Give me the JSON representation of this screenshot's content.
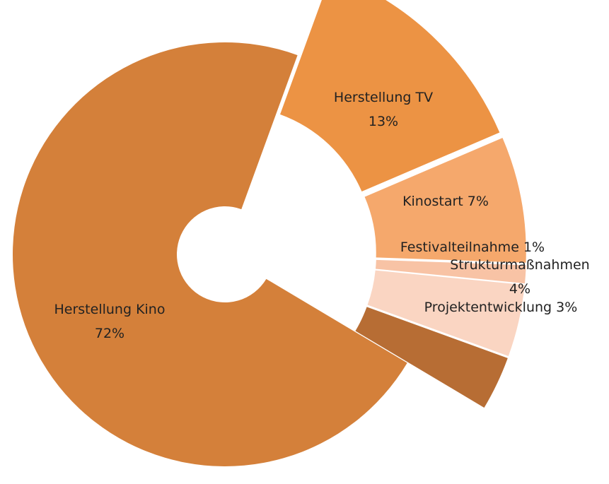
{
  "chart_data": {
    "type": "pie",
    "categories": [
      "Herstellung TV",
      "Kinostart",
      "Festivalteilnahme",
      "Strukturmaßnahmen",
      "Projektentwicklung",
      "Herstellung Kino"
    ],
    "values": [
      13,
      7,
      1,
      4,
      3,
      72
    ],
    "value_labels": [
      "13%",
      "7%",
      "1%",
      "4%",
      "3%",
      "72%"
    ],
    "colors": [
      "#ec9344",
      "#f5a86c",
      "#f8c3a5",
      "#fad5c2",
      "#b76d34",
      "#d4803a"
    ]
  }
}
